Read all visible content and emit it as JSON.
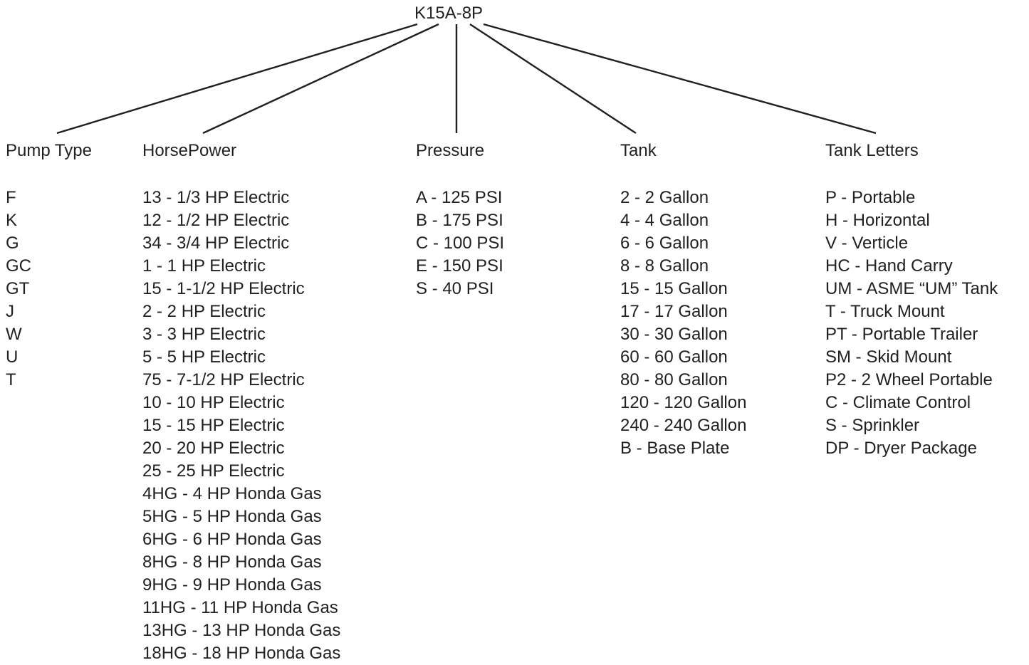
{
  "root_label": "K15A-8P",
  "columns": [
    {
      "key": "pump_type",
      "header": "Pump Type",
      "items": [
        "F",
        "K",
        "G",
        "GC",
        "GT",
        "J",
        "W",
        "U",
        "T"
      ]
    },
    {
      "key": "horsepower",
      "header": "HorsePower",
      "items": [
        "13 - 1/3 HP Electric",
        "12 - 1/2 HP Electric",
        "34 - 3/4 HP Electric",
        "1 - 1 HP Electric",
        "15 - 1-1/2 HP Electric",
        "2 - 2 HP Electric",
        "3 - 3 HP Electric",
        "5 - 5 HP Electric",
        "75 - 7-1/2 HP Electric",
        "10 - 10 HP Electric",
        "15 - 15 HP Electric",
        "20 - 20 HP Electric",
        "25 - 25 HP Electric",
        "4HG - 4 HP Honda Gas",
        "5HG - 5 HP Honda Gas",
        "6HG - 6 HP Honda Gas",
        "8HG - 8 HP Honda Gas",
        "9HG - 9 HP Honda Gas",
        "11HG - 11 HP Honda Gas",
        "13HG - 13 HP Honda Gas",
        "18HG - 18 HP Honda Gas"
      ]
    },
    {
      "key": "pressure",
      "header": "Pressure",
      "items": [
        "A - 125 PSI",
        "B - 175 PSI",
        "C - 100 PSI",
        "E - 150 PSI",
        "S - 40 PSI"
      ]
    },
    {
      "key": "tank",
      "header": "Tank",
      "items": [
        "2 - 2 Gallon",
        "4 - 4 Gallon",
        "6 - 6 Gallon",
        "8 - 8 Gallon",
        "15 - 15 Gallon",
        "17 - 17 Gallon",
        "30 - 30 Gallon",
        "60 - 60 Gallon",
        "80 - 80 Gallon",
        "120 - 120 Gallon",
        "240 - 240 Gallon",
        "B - Base Plate"
      ]
    },
    {
      "key": "tank_letters",
      "header": "Tank Letters",
      "items": [
        "P - Portable",
        "H - Horizontal",
        "V - Verticle",
        "HC - Hand Carry",
        "UM - ASME “UM” Tank",
        "T - Truck Mount",
        "PT - Portable Trailer",
        "SM - Skid Mount",
        "P2 - 2 Wheel Portable",
        "C - Climate Control",
        "S - Sprinkler",
        "DP - Dryer Package"
      ]
    }
  ]
}
